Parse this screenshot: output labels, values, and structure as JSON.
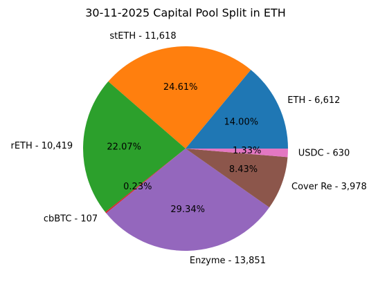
{
  "chart_data": {
    "type": "pie",
    "title": "30-11-2025 Capital Pool Split in ETH",
    "slices": [
      {
        "label": "ETH - 6,612",
        "pct": "14.00%",
        "value": 6612,
        "color": "#1f77b4"
      },
      {
        "label": "stETH - 11,618",
        "pct": "24.61%",
        "value": 11618,
        "color": "#ff7f0e"
      },
      {
        "label": "rETH - 10,419",
        "pct": "22.07%",
        "value": 10419,
        "color": "#2ca02c"
      },
      {
        "label": "cbBTC - 107",
        "pct": "0.23%",
        "value": 107,
        "color": "#d62728"
      },
      {
        "label": "Enzyme - 13,851",
        "pct": "29.34%",
        "value": 13851,
        "color": "#9467bd"
      },
      {
        "label": "Cover Re - 3,978",
        "pct": "8.43%",
        "value": 3978,
        "color": "#8c564b"
      },
      {
        "label": "USDC - 630",
        "pct": "1.33%",
        "value": 630,
        "color": "#e377c2"
      }
    ]
  }
}
